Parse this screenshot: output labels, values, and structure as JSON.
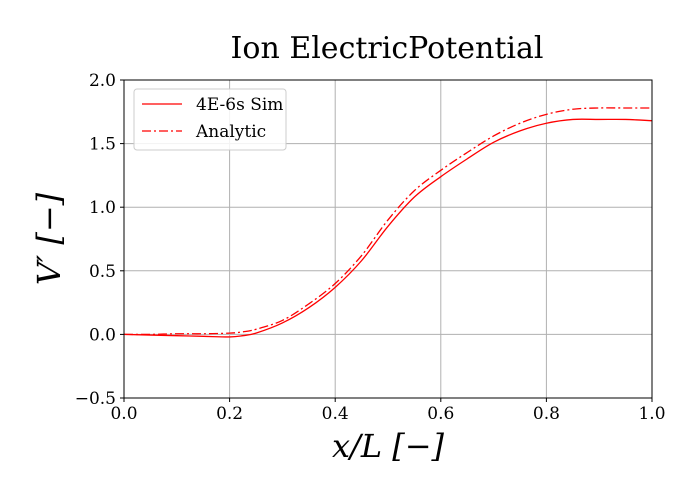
{
  "chart_data": {
    "type": "line",
    "title": "Ion ElectricPotential",
    "xlabel": "x/L [−]",
    "ylabel": "V′ [−]",
    "xlim": [
      0.0,
      1.0
    ],
    "ylim": [
      -0.5,
      2.0
    ],
    "xticks": [
      0.0,
      0.2,
      0.4,
      0.6,
      0.8,
      1.0
    ],
    "xtick_labels": [
      "0.0",
      "0.2",
      "0.4",
      "0.6",
      "0.8",
      "1.0"
    ],
    "yticks": [
      -0.5,
      0.0,
      0.5,
      1.0,
      1.5,
      2.0
    ],
    "ytick_labels": [
      "−0.5",
      "0.0",
      "0.5",
      "1.0",
      "1.5",
      "2.0"
    ],
    "grid": true,
    "legend_position": "upper-left",
    "series": [
      {
        "name": "4E-6s Sim",
        "color": "#ff0000",
        "linestyle": "solid",
        "x": [
          0.0,
          0.05,
          0.1,
          0.15,
          0.2,
          0.225,
          0.25,
          0.3,
          0.35,
          0.4,
          0.45,
          0.5,
          0.55,
          0.6,
          0.65,
          0.7,
          0.75,
          0.8,
          0.85,
          0.9,
          0.95,
          1.0
        ],
        "y": [
          0.0,
          -0.005,
          -0.01,
          -0.015,
          -0.02,
          -0.01,
          0.01,
          0.09,
          0.21,
          0.37,
          0.58,
          0.85,
          1.08,
          1.24,
          1.38,
          1.51,
          1.6,
          1.66,
          1.69,
          1.69,
          1.69,
          1.68
        ]
      },
      {
        "name": "Analytic",
        "color": "#ff0000",
        "linestyle": "dashdot",
        "x": [
          0.0,
          0.05,
          0.1,
          0.15,
          0.2,
          0.225,
          0.25,
          0.3,
          0.35,
          0.4,
          0.45,
          0.5,
          0.55,
          0.6,
          0.65,
          0.7,
          0.75,
          0.8,
          0.85,
          0.9,
          0.95,
          1.0
        ],
        "y": [
          0.0,
          0.0,
          0.005,
          0.005,
          0.01,
          0.02,
          0.04,
          0.11,
          0.24,
          0.4,
          0.62,
          0.9,
          1.13,
          1.29,
          1.43,
          1.56,
          1.66,
          1.73,
          1.77,
          1.78,
          1.78,
          1.78
        ]
      }
    ]
  }
}
